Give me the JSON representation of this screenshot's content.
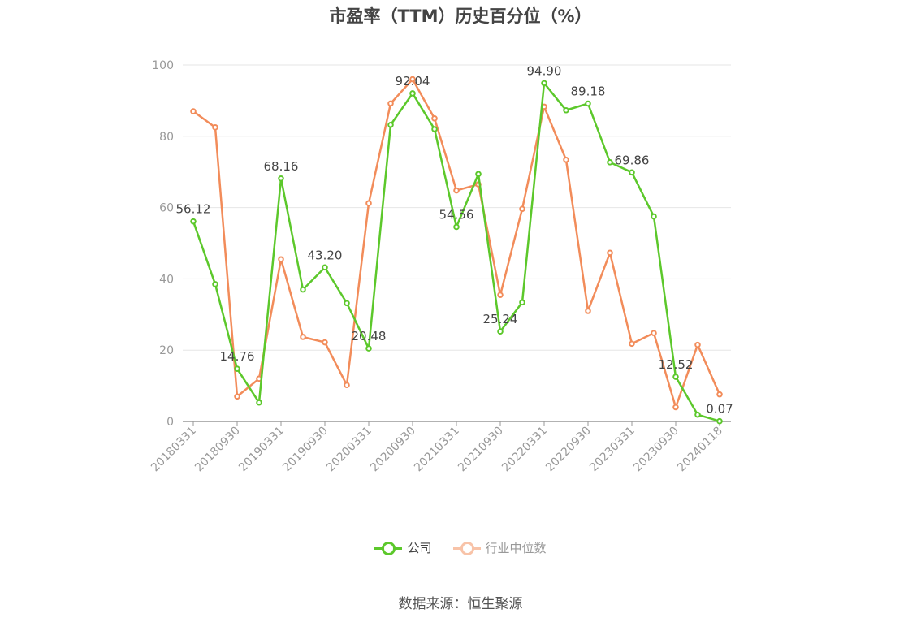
{
  "chart_data": {
    "type": "line",
    "title": "市盈率（TTM）历史百分位（%）",
    "source": "数据来源：恒生聚源",
    "ylim": [
      0,
      100
    ],
    "yticks": [
      "0",
      "20",
      "40",
      "60",
      "80",
      "100"
    ],
    "x": [
      "20180331",
      "20180630",
      "20180930",
      "20181231",
      "20190331",
      "20190630",
      "20190930",
      "20191231",
      "20200331",
      "20200630",
      "20200930",
      "20201231",
      "20210331",
      "20210630",
      "20210930",
      "20211231",
      "20220331",
      "20220630",
      "20220930",
      "20221231",
      "20230331",
      "20230630",
      "20230930",
      "20231231",
      "20240118"
    ],
    "xtick_labels": [
      "20180331",
      "20180930",
      "20190331",
      "20190930",
      "20200331",
      "20200930",
      "20210331",
      "20210930",
      "20220331",
      "20220930",
      "20230331",
      "20230930",
      "20240118"
    ],
    "grid": true,
    "legend_position": "bottom",
    "series": [
      {
        "name": "公司",
        "color": "#5cc82b",
        "values": [
          56.12,
          38.5,
          14.76,
          5.3,
          68.16,
          37.0,
          43.2,
          33.2,
          20.48,
          83.2,
          92.04,
          82.0,
          54.56,
          69.4,
          25.24,
          33.4,
          94.9,
          87.3,
          89.18,
          72.7,
          69.86,
          57.5,
          12.52,
          1.9,
          0.07
        ],
        "labels": [
          "56.12",
          "",
          "14.76",
          "",
          "68.16",
          "",
          "43.20",
          "",
          "20.48",
          "",
          "92.04",
          "",
          "54.56",
          "",
          "25.24",
          "",
          "94.90",
          "",
          "89.18",
          "",
          "69.86",
          "",
          "12.52",
          "",
          "0.07"
        ]
      },
      {
        "name": "行业中位数",
        "color": "#f28c5a",
        "values": [
          87.0,
          82.5,
          7.0,
          12.0,
          45.5,
          23.7,
          22.2,
          10.2,
          61.2,
          89.2,
          96.0,
          85.0,
          64.8,
          66.5,
          35.5,
          59.6,
          88.3,
          73.4,
          31.0,
          47.3,
          21.8,
          24.8,
          4.0,
          21.5,
          7.6
        ]
      }
    ]
  }
}
